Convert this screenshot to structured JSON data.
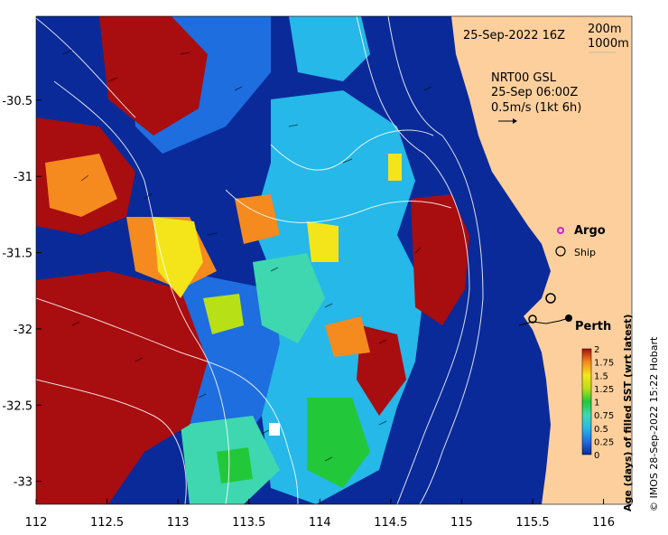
{
  "map": {
    "date_stamp": "25-Sep-2022 16Z",
    "contour_labels": [
      "200m",
      "1000m"
    ],
    "current_product": "NRT00 GSL",
    "current_time": "25-Sep 06:00Z",
    "current_scale": "0.5m/s (1kt 6h)",
    "legend_argo": "Argo",
    "legend_ship": "Ship",
    "place_label": "Perth",
    "colorbar_title": "Age (days) of filled SST (wrt latest)",
    "colorbar_ticks": [
      "2",
      "1.75",
      "1.5",
      "1.25",
      "1",
      "0.75",
      "0.5",
      "0.25",
      "0"
    ],
    "credit": "© IMOS 28-Sep-2022 15:22 Hobart",
    "x_ticks": [
      "112",
      "112.5",
      "113",
      "113.5",
      "114",
      "114.5",
      "115",
      "115.5",
      "116"
    ],
    "y_ticks": [
      "-30.5",
      "-31",
      "-31.5",
      "-32",
      "-32.5",
      "-33"
    ],
    "colors": {
      "land": "#fccf9c",
      "age_0": "#0a2a9a",
      "age_025": "#1e6ee0",
      "age_05": "#25b8e8",
      "age_075": "#3ed7b0",
      "age_1": "#22c83a",
      "age_125": "#b8e016",
      "age_15": "#f4e51a",
      "age_175": "#f58a1e",
      "age_2": "#a80d10"
    }
  },
  "chart_data": {
    "type": "heatmap",
    "variable": "Age (days) of filled SST (wrt latest)",
    "colorbar_range": [
      0,
      2
    ],
    "xlim": [
      112,
      116.2
    ],
    "ylim": [
      -33.15,
      -29.95
    ],
    "x_tick_values": [
      112,
      112.5,
      113,
      113.5,
      114,
      114.5,
      115,
      115.5,
      116
    ],
    "y_tick_values": [
      -30.5,
      -31,
      -31.5,
      -32,
      -32.5,
      -33
    ],
    "grid": false,
    "places": [
      {
        "name": "Perth",
        "lon": 115.86,
        "lat": -31.95
      }
    ],
    "approximate_regions": [
      {
        "age": 0,
        "description_region": "nearshore shelf east of 114.6 and northwest top"
      },
      {
        "age": 2,
        "description_region": "southwest and west-central offshore"
      },
      {
        "age": 0.5,
        "description_region": "central offshore 113.8-114.6"
      },
      {
        "age": 1.5,
        "description_region": "scattered patches near 113.0, -31.5"
      }
    ]
  }
}
